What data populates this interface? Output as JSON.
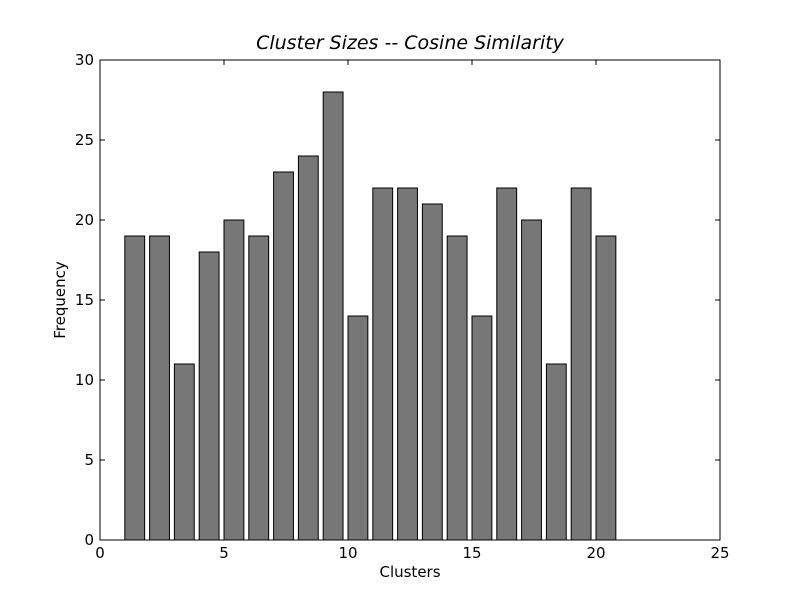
{
  "chart_data": {
    "type": "bar",
    "title": "Cluster Sizes -- Cosine Similarity",
    "xlabel": "Clusters",
    "ylabel": "Frequency",
    "x": [
      1,
      2,
      3,
      4,
      5,
      6,
      7,
      8,
      9,
      10,
      11,
      12,
      13,
      14,
      15,
      16,
      17,
      18,
      19,
      20
    ],
    "values": [
      19,
      19,
      11,
      18,
      20,
      19,
      23,
      24,
      28,
      14,
      22,
      22,
      21,
      19,
      14,
      22,
      20,
      11,
      22,
      19
    ],
    "bar_width": 0.8,
    "xlim": [
      0,
      25
    ],
    "ylim": [
      0,
      30
    ],
    "xticks": [
      0,
      5,
      10,
      15,
      20,
      25
    ],
    "yticks": [
      0,
      5,
      10,
      15,
      20,
      25,
      30
    ],
    "grid": false,
    "colors": {
      "bar_fill": "#777777",
      "bar_edge": "#000000",
      "axes": "#000000"
    }
  }
}
